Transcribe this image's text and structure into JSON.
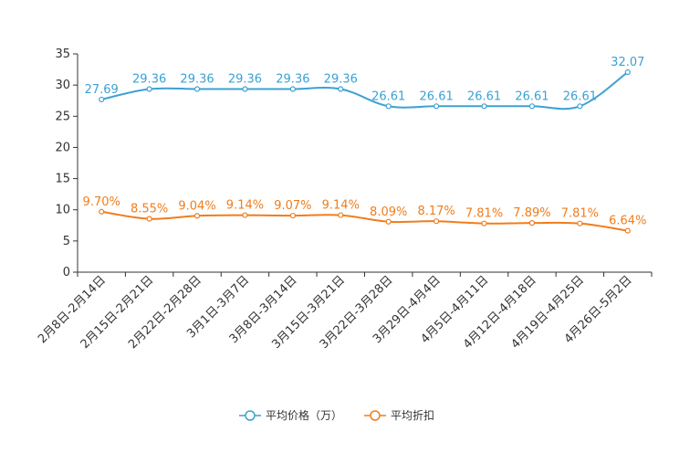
{
  "chart_data": {
    "type": "line",
    "categories": [
      "2月8日-2月14日",
      "2月15日-2月21日",
      "2月22日-2月28日",
      "3月1日-3月7日",
      "3月8日-3月14日",
      "3月15日-3月21日",
      "3月22日-3月28日",
      "3月29日-4月4日",
      "4月5日-4月11日",
      "4月12日-4月18日",
      "4月19日-4月25日",
      "4月26日-5月2日"
    ],
    "series": [
      {
        "name": "平均价格（万）",
        "color": "#3ba1d4",
        "values": [
          27.69,
          29.36,
          29.36,
          29.36,
          29.36,
          29.36,
          26.61,
          26.61,
          26.61,
          26.61,
          26.61,
          32.07
        ],
        "labels": [
          "27.69",
          "29.36",
          "29.36",
          "29.36",
          "29.36",
          "29.36",
          "26.61",
          "26.61",
          "26.61",
          "26.61",
          "26.61",
          "32.07"
        ]
      },
      {
        "name": "平均折扣",
        "color": "#f07d1c",
        "values": [
          9.7,
          8.55,
          9.04,
          9.14,
          9.07,
          9.14,
          8.09,
          8.17,
          7.81,
          7.89,
          7.81,
          6.64
        ],
        "labels": [
          "9.70%",
          "8.55%",
          "9.04%",
          "9.14%",
          "9.07%",
          "9.14%",
          "8.09%",
          "8.17%",
          "7.81%",
          "7.89%",
          "7.81%",
          "6.64%"
        ]
      }
    ],
    "y_ticks": [
      "0",
      "5",
      "10",
      "15",
      "20",
      "25",
      "30",
      "35"
    ],
    "ylim": [
      0,
      35
    ],
    "title": "",
    "xlabel": "",
    "ylabel": "",
    "grid": false,
    "legend_position": "bottom-center"
  }
}
